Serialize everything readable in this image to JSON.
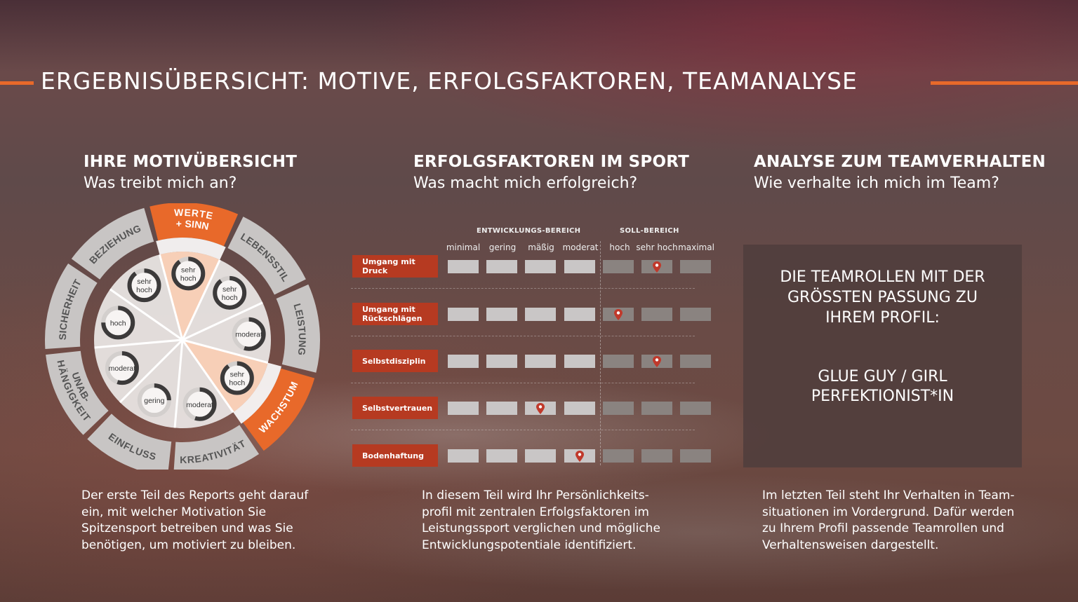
{
  "title": "ERGEBNISÜBERSICHT: MOTIVE, ERFOLGSFAKTOREN, TEAMANALYSE",
  "colors": {
    "accent": "#e8692a",
    "label_red": "#b63a21",
    "wheel_segment": "#c8c5c4"
  },
  "motive": {
    "heading": "IHRE MOTIVÜBERSICHT",
    "subheading": "Was treibt mich an?",
    "segments": [
      {
        "label": "SICHERHEIT",
        "level": "hoch",
        "highlighted": false
      },
      {
        "label": "BEZIEHUNG",
        "level": "sehr hoch",
        "highlighted": false
      },
      {
        "label": "WERTE + SINN",
        "level": "sehr hoch",
        "highlighted": true
      },
      {
        "label": "LEBENSSTIL",
        "level": "sehr hoch",
        "highlighted": false
      },
      {
        "label": "LEISTUNG",
        "level": "moderat",
        "highlighted": false
      },
      {
        "label": "WACHSTUM",
        "level": "sehr hoch",
        "highlighted": true
      },
      {
        "label": "KREATIVITÄT",
        "level": "moderat",
        "highlighted": false
      },
      {
        "label": "EINFLUSS",
        "level": "gering",
        "highlighted": false
      },
      {
        "label": "UNAB- HÄNGIGKEIT",
        "level": "moderat",
        "highlighted": false
      }
    ],
    "description": "Der erste Teil des Reports geht darauf ein, mit welcher Motivation Sie Spitzensport betreiben und was Sie benötigen, um motiviert zu bleiben."
  },
  "factors": {
    "heading": "ERFOLGSFAKTOREN IM SPORT",
    "subheading": "Was macht mich erfolgreich?",
    "group_development": "ENTWICKLUNGS-BEREICH",
    "group_target": "SOLL-BEREICH",
    "columns": [
      "minimal",
      "gering",
      "mäßig",
      "moderat",
      "hoch",
      "sehr hoch",
      "maximal"
    ],
    "rows": [
      {
        "label": "Umgang mit Druck",
        "marker": "sehr hoch"
      },
      {
        "label": "Umgang mit Rückschlägen",
        "marker": "hoch"
      },
      {
        "label": "Selbstdisziplin",
        "marker": "sehr hoch"
      },
      {
        "label": "Selbstvertrauen",
        "marker": "mäßig"
      },
      {
        "label": "Bodenhaftung",
        "marker": "moderat"
      }
    ],
    "description": "In diesem Teil wird Ihr Persönlichkeits-profil mit zentralen Erfolgsfaktoren im Leistungssport verglichen und mögliche Entwicklungspotentiale identifiziert."
  },
  "team": {
    "heading": "ANALYSE ZUM TEAMVERHALTEN",
    "subheading": "Wie verhalte ich mich im Team?",
    "box_title": "DIE TEAMROLLEN MIT DER GRÖSSTEN PASSUNG ZU IHREM PROFIL:",
    "roles": [
      "GLUE GUY / GIRL",
      "PERFEKTIONIST*IN"
    ],
    "description": "Im letzten Teil steht Ihr Verhalten in Team-situationen im Vordergrund. Dafür werden zu Ihrem Profil passende Teamrollen und Verhaltensweisen dargestellt."
  }
}
